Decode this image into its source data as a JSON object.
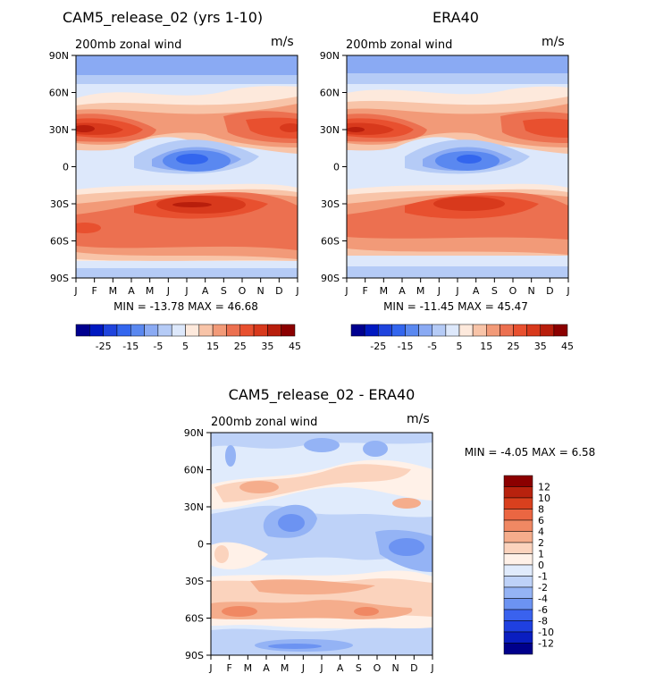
{
  "chart_data": [
    {
      "type": "heatmap",
      "title": "CAM5_release_02 (yrs 1-10)",
      "subtitle": "200mb zonal wind",
      "units": "m/s",
      "xlabel": "",
      "ylabel": "",
      "x_tick_labels": [
        "J",
        "F",
        "M",
        "A",
        "M",
        "J",
        "J",
        "A",
        "S",
        "O",
        "N",
        "D",
        "J"
      ],
      "y_tick_labels": [
        "90N",
        "60N",
        "30N",
        "0",
        "30S",
        "60S",
        "90S"
      ],
      "stats": "MIN = -13.78 MAX =  46.68",
      "min": -13.78,
      "max": 46.68,
      "colorbar_labels": [
        "-25",
        "-15",
        "-5",
        "5",
        "15",
        "25",
        "35",
        "45"
      ],
      "contour_levels": [
        -25,
        -20,
        -15,
        -10,
        -5,
        0,
        5,
        10,
        15,
        20,
        25,
        30,
        35,
        40,
        45
      ]
    },
    {
      "type": "heatmap",
      "title": "ERA40",
      "subtitle": "200mb zonal wind",
      "units": "m/s",
      "x_tick_labels": [
        "J",
        "F",
        "M",
        "A",
        "M",
        "J",
        "J",
        "A",
        "S",
        "O",
        "N",
        "D",
        "J"
      ],
      "y_tick_labels": [
        "90N",
        "60N",
        "30N",
        "0",
        "30S",
        "60S",
        "90S"
      ],
      "stats": "MIN = -11.45 MAX =  45.47",
      "min": -11.45,
      "max": 45.47,
      "colorbar_labels": [
        "-25",
        "-15",
        "-5",
        "5",
        "15",
        "25",
        "35",
        "45"
      ],
      "contour_levels": [
        -25,
        -20,
        -15,
        -10,
        -5,
        0,
        5,
        10,
        15,
        20,
        25,
        30,
        35,
        40,
        45
      ]
    },
    {
      "type": "heatmap",
      "title": "CAM5_release_02 - ERA40",
      "subtitle": "200mb zonal wind",
      "units": "m/s",
      "x_tick_labels": [
        "J",
        "F",
        "M",
        "A",
        "M",
        "J",
        "J",
        "A",
        "S",
        "O",
        "N",
        "D",
        "J"
      ],
      "y_tick_labels": [
        "90N",
        "60N",
        "30N",
        "0",
        "30S",
        "60S",
        "90S"
      ],
      "stats": "MIN =   -4.05 MAX =   6.58",
      "min": -4.05,
      "max": 6.58,
      "colorbar_labels": [
        "12",
        "10",
        "8",
        "6",
        "4",
        "2",
        "1",
        "0",
        "-1",
        "-2",
        "-4",
        "-6",
        "-8",
        "-10",
        "-12"
      ],
      "contour_levels": [
        -12,
        -10,
        -8,
        -6,
        -4,
        -2,
        -1,
        0,
        1,
        2,
        4,
        6,
        8,
        10,
        12
      ]
    }
  ],
  "palette": {
    "wind": [
      "#00008f",
      "#0019c1",
      "#1f44dd",
      "#3366ee",
      "#5a88f0",
      "#8aaaf3",
      "#b5cbf6",
      "#dde8fb",
      "#fde9dc",
      "#f8c4a8",
      "#f29a78",
      "#ec7050",
      "#e8502f",
      "#d8391c",
      "#b81e0c",
      "#8b0000"
    ],
    "diff": [
      "#00008b",
      "#0a1ec0",
      "#1f40e0",
      "#3a62ee",
      "#6c93f2",
      "#94b3f5",
      "#bed2f8",
      "#e0ebfc",
      "#fff1e8",
      "#fbd3bd",
      "#f5ad8c",
      "#f08863",
      "#eb6642",
      "#d9401e",
      "#b8220e",
      "#8b0000"
    ]
  }
}
